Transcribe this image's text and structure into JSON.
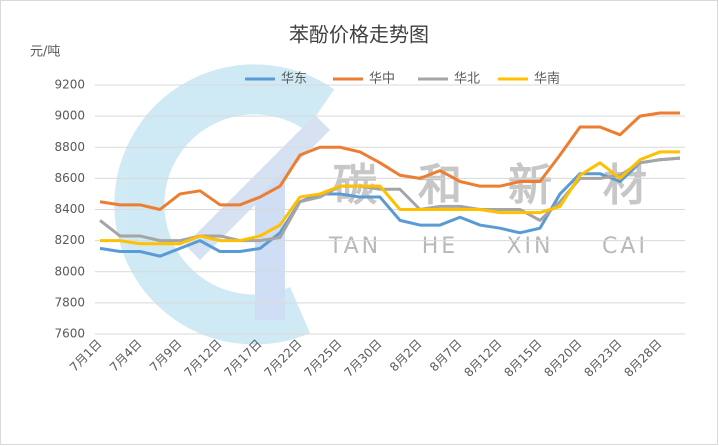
{
  "chart_data": {
    "type": "line",
    "title": "苯酚价格走势图",
    "y_axis_label": "元/吨",
    "watermark": {
      "chinese": [
        "碳",
        "和",
        "新",
        "材"
      ],
      "pinyin": [
        "TAN",
        "HE",
        "XIN",
        "CAI"
      ]
    },
    "categories": [
      "7月1日",
      null,
      "7月4日",
      null,
      "7月9日",
      null,
      "7月12日",
      null,
      "7月17日",
      null,
      "7月22日",
      null,
      "7月25日",
      null,
      "7月30日",
      null,
      "8月2日",
      null,
      "8月7日",
      null,
      "8月12日",
      null,
      "8月15日",
      null,
      "8月20日",
      null,
      "8月23日",
      null,
      "8月28日",
      null
    ],
    "series": [
      {
        "name": "华东",
        "color": "#5b9bd5",
        "values": [
          8150,
          8130,
          8130,
          8100,
          8150,
          8200,
          8130,
          8130,
          8150,
          8250,
          8450,
          8500,
          8500,
          8480,
          8480,
          8330,
          8300,
          8300,
          8350,
          8300,
          8280,
          8250,
          8280,
          8500,
          8630,
          8630,
          8580,
          8700,
          8720,
          8730
        ]
      },
      {
        "name": "华中",
        "color": "#ed7d31",
        "values": [
          8450,
          8430,
          8430,
          8400,
          8500,
          8520,
          8430,
          8430,
          8480,
          8550,
          8750,
          8800,
          8800,
          8770,
          8700,
          8620,
          8600,
          8650,
          8580,
          8550,
          8550,
          8580,
          8580,
          8750,
          8930,
          8930,
          8880,
          9000,
          9020,
          9020
        ]
      },
      {
        "name": "华北",
        "color": "#a5a5a5",
        "values": [
          8330,
          8230,
          8230,
          8200,
          8200,
          8230,
          8230,
          8200,
          8200,
          8220,
          8450,
          8480,
          8550,
          8550,
          8530,
          8530,
          8400,
          8420,
          8420,
          8400,
          8400,
          8400,
          8330,
          8450,
          8600,
          8600,
          8620,
          8700,
          8720,
          8730
        ]
      },
      {
        "name": "华南",
        "color": "#ffc000",
        "values": [
          8200,
          8200,
          8180,
          8180,
          8180,
          8230,
          8200,
          8200,
          8230,
          8300,
          8480,
          8500,
          8550,
          8550,
          8550,
          8400,
          8400,
          8400,
          8400,
          8400,
          8380,
          8380,
          8380,
          8420,
          8620,
          8700,
          8600,
          8720,
          8770,
          8770
        ]
      }
    ],
    "ylim": [
      7600,
      9200
    ],
    "yticks": [
      7600,
      7800,
      8000,
      8200,
      8400,
      8600,
      8800,
      9000,
      9200
    ],
    "grid": true,
    "legend": "top"
  }
}
